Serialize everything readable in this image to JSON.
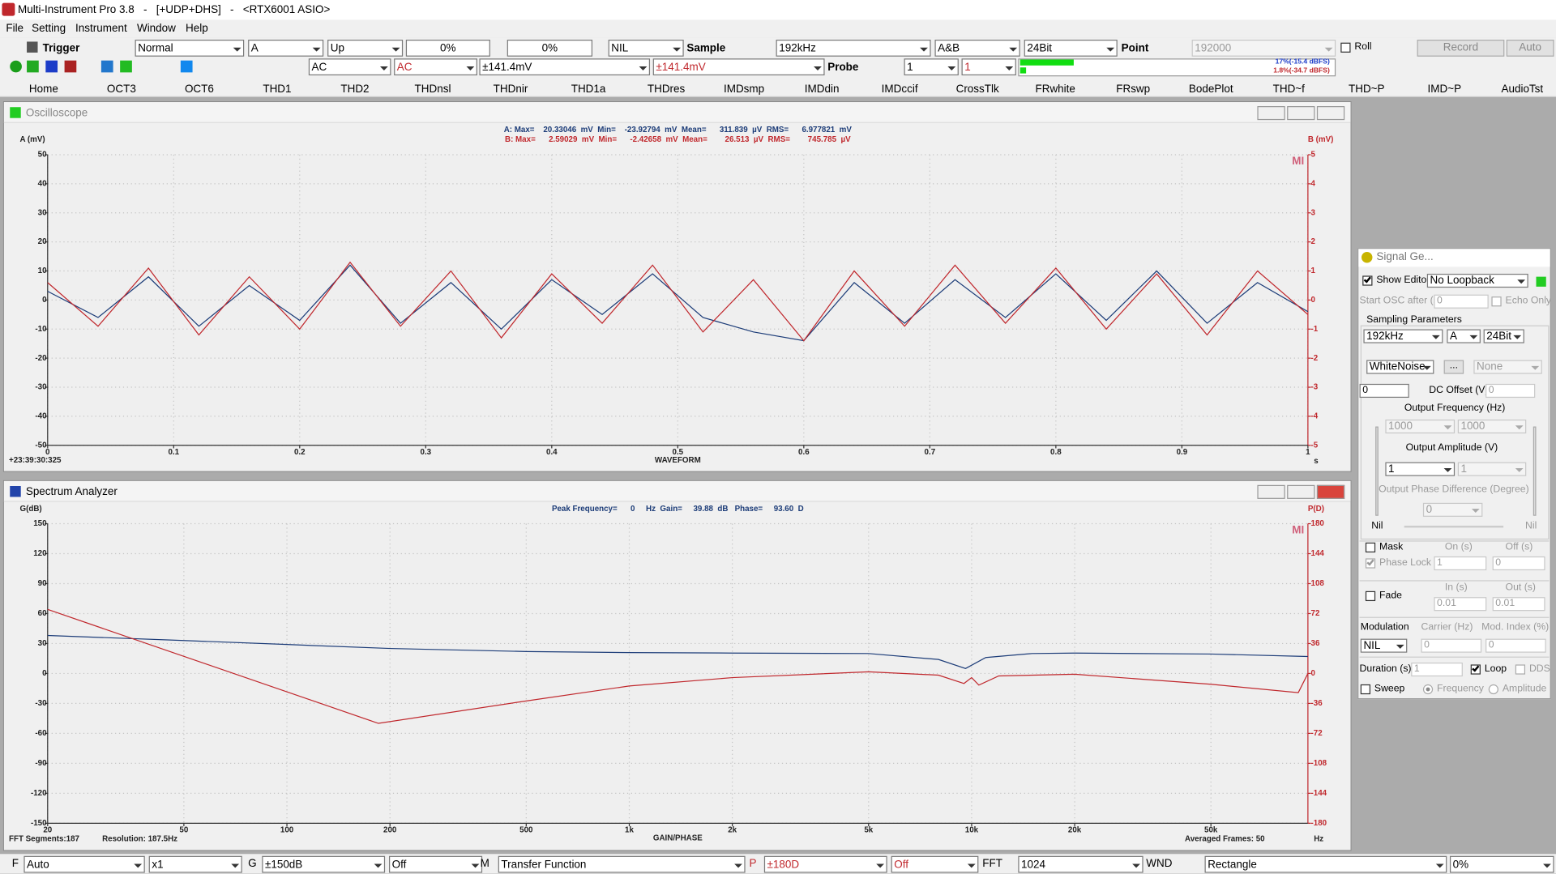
{
  "window_title": "Multi-Instrument Pro 3.8   -   [+UDP+DHS]   -   <RTX6001 ASIO>",
  "menu": [
    "File",
    "Setting",
    "Instrument",
    "Window",
    "Help"
  ],
  "toolbar_top": [
    "Trigger",
    "Normal",
    "A",
    "Up",
    "0%",
    "0%",
    "NIL",
    "Sample",
    "192kHz",
    "A&B",
    "24Bit",
    "Point",
    "192000",
    "Roll",
    "Record",
    "Auto"
  ],
  "toolbar_second": [
    "AC",
    "AC",
    "±141.4mV",
    "±141.4mV",
    "Probe",
    "1",
    "1"
  ],
  "levels": {
    "values": [
      17,
      1.8
    ],
    "value_labels": [
      "17%(-15.4 dBFS)",
      "1.8%(-34.7 dBFS)"
    ]
  },
  "tabs": [
    "Home",
    "OCT3",
    "OCT6",
    "THD1",
    "THD2",
    "THDnsl",
    "THDnir",
    "THD1a",
    "THDres",
    "IMDsmp",
    "IMDdin",
    "IMDccif",
    "CrossTlk",
    "FRwhite",
    "FRswp",
    "BodePlot",
    "THD~f",
    "THD~P",
    "IMD~P",
    "AudioTst"
  ],
  "chart_data": [
    {
      "type": "line",
      "title": "Oscilloscope",
      "stats": [
        "A: Max=    20.33046  mV  Min=    -23.92794  mV  Mean=      311.839  µV  RMS=      6.977821  mV",
        "B: Max=      2.59029  mV  Min=      -2.42658  mV  Mean=        26.513  µV  RMS=        745.785  µV"
      ],
      "ylabel": "A (mV)",
      "y2label": "B (mV)",
      "xlabel": "WAVEFORM",
      "xunit": "s",
      "timestamp": "+23:39:30:325",
      "logo": "MI",
      "x": [
        0,
        0.04,
        0.08,
        0.12,
        0.16,
        0.2,
        0.24,
        0.28,
        0.32,
        0.36,
        0.4,
        0.44,
        0.48,
        0.52,
        0.56,
        0.6,
        0.64,
        0.68,
        0.72,
        0.76,
        0.8,
        0.84,
        0.88,
        0.92,
        0.96,
        1
      ],
      "series": [
        {
          "color": "#1c3c78",
          "values": [
            3,
            -6,
            8,
            -9,
            5,
            -7,
            12,
            -8,
            6,
            -10,
            7,
            -5,
            9,
            -6,
            -11,
            -14,
            6,
            -8,
            7,
            -6,
            9,
            -7,
            10,
            -8,
            6,
            -4
          ]
        },
        {
          "color": "#c0282d",
          "axis": "y2",
          "values": [
            0.6,
            -0.9,
            1.1,
            -1.2,
            0.8,
            -1.0,
            1.3,
            -0.9,
            1.0,
            -1.3,
            0.9,
            -0.8,
            1.2,
            -1.1,
            0.7,
            -1.4,
            1.0,
            -0.9,
            1.2,
            -0.8,
            1.1,
            -1.0,
            0.9,
            -1.2,
            1.0,
            -0.5
          ]
        }
      ],
      "xlim": [
        0,
        1
      ],
      "xticks": [
        0,
        0.1,
        0.2,
        0.3,
        0.4,
        0.5,
        0.6,
        0.7,
        0.8,
        0.9,
        1
      ],
      "ylim": [
        -50,
        50
      ],
      "yticks": [
        50,
        40,
        30,
        20,
        10,
        0,
        -10,
        -20,
        -30,
        -40,
        -50
      ],
      "y2lim": [
        -5,
        5
      ],
      "y2ticks": [
        5,
        4,
        3,
        2,
        1,
        0,
        -1,
        -2,
        -3,
        -4,
        -5
      ],
      "grid": true
    },
    {
      "type": "line",
      "title": "Spectrum Analyzer",
      "stats": [
        "Peak Frequency=      0     Hz  Gain=     39.88  dB   Phase=     93.60  D"
      ],
      "ylabel": "G(dB)",
      "y2label": "P(D)",
      "xlabel": "GAIN/PHASE",
      "xunit": "Hz",
      "logo": "MI",
      "footer": [
        "FFT Segments:187",
        "Resolution: 187.5Hz",
        "Averaged Frames: 50"
      ],
      "xscale": "log",
      "series": [
        {
          "color": "#1c3c78",
          "x": [
            20,
            50,
            100,
            200,
            500,
            1000,
            2000,
            5000,
            8000,
            9600,
            11000,
            15000,
            20000,
            50000,
            96000
          ],
          "values": [
            38,
            33,
            29,
            25,
            22,
            21,
            20.5,
            20,
            14,
            5,
            16,
            20,
            20.5,
            19.5,
            17
          ]
        },
        {
          "color": "#c0282d",
          "axis": "y2",
          "x": [
            20,
            185,
            500,
            1000,
            2000,
            5000,
            8000,
            9500,
            10000,
            10500,
            12000,
            20000,
            50000,
            90000,
            96000
          ],
          "values": [
            77,
            -60,
            -33,
            -15,
            -5,
            2,
            -2,
            -12,
            -5,
            -14,
            -3,
            -1,
            -13,
            -23,
            0
          ]
        }
      ],
      "xlim": [
        20,
        96000
      ],
      "xticks": [
        20,
        50,
        100,
        200,
        500,
        {
          "value": 1000,
          "label": "1k"
        },
        {
          "value": 2000,
          "label": "2k"
        },
        {
          "value": 5000,
          "label": "5k"
        },
        {
          "value": 10000,
          "label": "10k"
        },
        {
          "value": 20000,
          "label": "20k"
        },
        {
          "value": 50000,
          "label": "50k"
        }
      ],
      "ylim": [
        -150,
        150
      ],
      "yticks": [
        150,
        120,
        90,
        60,
        30,
        0,
        -30,
        -60,
        -90,
        -120,
        -150
      ],
      "y2lim": [
        -180,
        180
      ],
      "y2ticks": [
        180,
        144,
        108,
        72,
        36,
        0,
        -36,
        -72,
        -108,
        -144,
        -180
      ],
      "grid": true
    }
  ],
  "bottom_bar": [
    "F",
    "Auto",
    "x1",
    "G",
    "±150dB",
    "Off",
    "M",
    "Transfer Function",
    "P",
    "±180D",
    "Off",
    "FFT",
    "1024",
    "WND",
    "Rectangle",
    "0%"
  ],
  "signal_generator": [
    "Signal Ge...",
    "Show Editor",
    "No Loopback",
    "Start OSC after (s)",
    "0",
    "Echo Only",
    "Sampling Parameters",
    "192kHz",
    "A",
    "24Bit",
    "WhiteNoise",
    "...",
    "None",
    "0",
    "DC Offset (V)",
    "0",
    "Output Frequency (Hz)",
    "1000",
    "1000",
    "Output Amplitude (V)",
    "1",
    "1",
    "Output Phase Difference (Degree)",
    "0",
    "Nil",
    "Nil",
    "Mask",
    "On (s)",
    "Off (s)",
    "Phase Lock",
    "1",
    "0",
    "Fade",
    "In (s)",
    "Out (s)",
    "0.01",
    "0.01",
    "Modulation",
    "Carrier (Hz)",
    "Mod. Index (%)",
    "NIL",
    "0",
    "0",
    "Duration (s)",
    "1",
    "Loop",
    "DDS",
    "Sweep",
    "Frequency",
    "Amplitude"
  ]
}
